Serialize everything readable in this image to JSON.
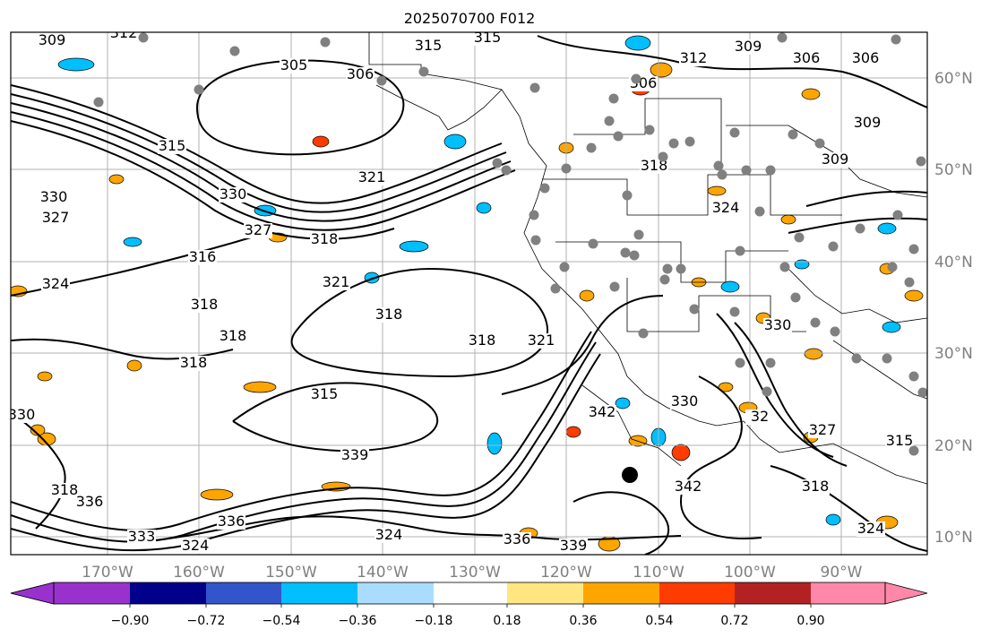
{
  "title": "2025070700 F012",
  "longitude_labels": [
    "170°W",
    "160°W",
    "150°W",
    "140°W",
    "130°W",
    "120°W",
    "110°W",
    "100°W",
    "90°W"
  ],
  "latitude_labels": [
    "60°N",
    "50°N",
    "40°N",
    "30°N",
    "20°N",
    "10°N"
  ],
  "colorbar": {
    "colors": [
      "#9932cc",
      "#00008b",
      "#3355cc",
      "#00bfff",
      "#aadcff",
      "#ffffff",
      "#ffe680",
      "#ffa500",
      "#ff3c00",
      "#b22222",
      "#ff88aa"
    ],
    "tick_labels": [
      "−0.90",
      "−0.72",
      "−0.54",
      "−0.36",
      "−0.18",
      "0.18",
      "0.36",
      "0.54",
      "0.72",
      "0.90"
    ]
  },
  "contour_labels": [
    "309",
    "312",
    "315",
    "315",
    "309",
    "306",
    "306",
    "305",
    "306",
    "306",
    "309",
    "309",
    "315",
    "312",
    "318",
    "330",
    "324",
    "327",
    "330",
    "321",
    "327",
    "318",
    "316",
    "324",
    "318",
    "321",
    "318",
    "318",
    "321",
    "318",
    "318",
    "315",
    "339",
    "342",
    "330",
    "327",
    "315",
    "318",
    "318",
    "336",
    "342",
    "336",
    "339",
    "336",
    "333",
    "324",
    "324",
    "324",
    "32",
    "330",
    "330"
  ],
  "station_dots_count": 68,
  "cyclone_marker": "large-black-dot",
  "colors": {
    "contour": "#000000",
    "gridline": "#b0b0b0",
    "axis_label": "#808080",
    "station_dot": "#808080"
  }
}
